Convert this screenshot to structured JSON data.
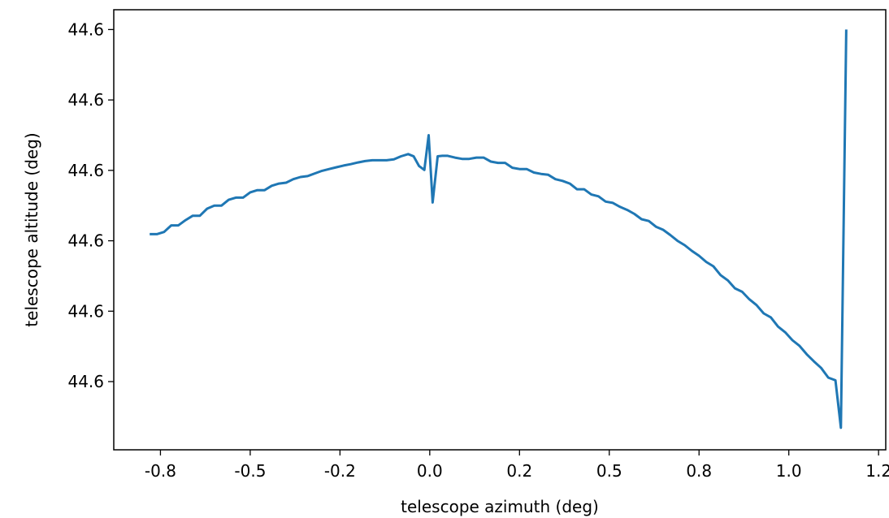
{
  "chart_data": {
    "type": "line",
    "title": "",
    "xlabel": "telescope azimuth (deg)",
    "ylabel": "telescope altitude (deg)",
    "grid": false,
    "legend": "none",
    "xlim": [
      -0.88,
      1.27
    ],
    "ylim": [
      0.0,
      1.0
    ],
    "x_ticks": [
      -0.75,
      -0.5,
      -0.25,
      0.0,
      0.25,
      0.5,
      0.75,
      1.0,
      1.25
    ],
    "x_tick_labels": [
      "-0.8",
      "-0.5",
      "-0.2",
      "0.0",
      "0.2",
      "0.5",
      "0.8",
      "1.0",
      "1.2"
    ],
    "y_ticks": [
      0.955,
      0.795,
      0.635,
      0.475,
      0.315,
      0.155
    ],
    "y_tick_labels": [
      "44.6",
      "44.6",
      "44.6",
      "44.6",
      "44.6",
      "44.6"
    ],
    "series": [
      {
        "color": "#1f77b4",
        "x": [
          -0.78,
          -0.76,
          -0.74,
          -0.72,
          -0.7,
          -0.68,
          -0.66,
          -0.64,
          -0.62,
          -0.6,
          -0.58,
          -0.56,
          -0.54,
          -0.52,
          -0.5,
          -0.48,
          -0.46,
          -0.44,
          -0.42,
          -0.4,
          -0.38,
          -0.36,
          -0.34,
          -0.32,
          -0.3,
          -0.28,
          -0.26,
          -0.24,
          -0.22,
          -0.2,
          -0.18,
          -0.16,
          -0.14,
          -0.12,
          -0.1,
          -0.08,
          -0.06,
          -0.045,
          -0.03,
          -0.015,
          -0.003,
          0.008,
          0.022,
          0.035,
          0.05,
          0.07,
          0.09,
          0.11,
          0.13,
          0.15,
          0.17,
          0.19,
          0.21,
          0.23,
          0.25,
          0.27,
          0.29,
          0.31,
          0.33,
          0.35,
          0.37,
          0.39,
          0.41,
          0.43,
          0.45,
          0.47,
          0.49,
          0.51,
          0.53,
          0.55,
          0.57,
          0.59,
          0.61,
          0.63,
          0.65,
          0.67,
          0.69,
          0.71,
          0.73,
          0.75,
          0.77,
          0.79,
          0.81,
          0.83,
          0.85,
          0.87,
          0.89,
          0.91,
          0.93,
          0.95,
          0.97,
          0.99,
          1.01,
          1.03,
          1.05,
          1.07,
          1.09,
          1.11,
          1.13,
          1.145,
          1.16
        ],
        "y": [
          0.49,
          0.49,
          0.495,
          0.51,
          0.51,
          0.522,
          0.532,
          0.532,
          0.548,
          0.555,
          0.555,
          0.568,
          0.573,
          0.573,
          0.585,
          0.59,
          0.59,
          0.6,
          0.605,
          0.607,
          0.615,
          0.62,
          0.622,
          0.628,
          0.634,
          0.638,
          0.642,
          0.646,
          0.649,
          0.653,
          0.656,
          0.658,
          0.658,
          0.658,
          0.66,
          0.667,
          0.672,
          0.667,
          0.645,
          0.636,
          0.715,
          0.562,
          0.667,
          0.668,
          0.668,
          0.664,
          0.661,
          0.661,
          0.664,
          0.664,
          0.655,
          0.652,
          0.652,
          0.641,
          0.638,
          0.638,
          0.63,
          0.627,
          0.625,
          0.615,
          0.611,
          0.605,
          0.592,
          0.592,
          0.58,
          0.576,
          0.564,
          0.561,
          0.552,
          0.545,
          0.536,
          0.524,
          0.52,
          0.507,
          0.5,
          0.488,
          0.475,
          0.465,
          0.452,
          0.441,
          0.427,
          0.417,
          0.397,
          0.385,
          0.367,
          0.359,
          0.342,
          0.329,
          0.31,
          0.301,
          0.28,
          0.267,
          0.249,
          0.236,
          0.217,
          0.201,
          0.186,
          0.164,
          0.158,
          0.05,
          0.955
        ]
      }
    ]
  }
}
